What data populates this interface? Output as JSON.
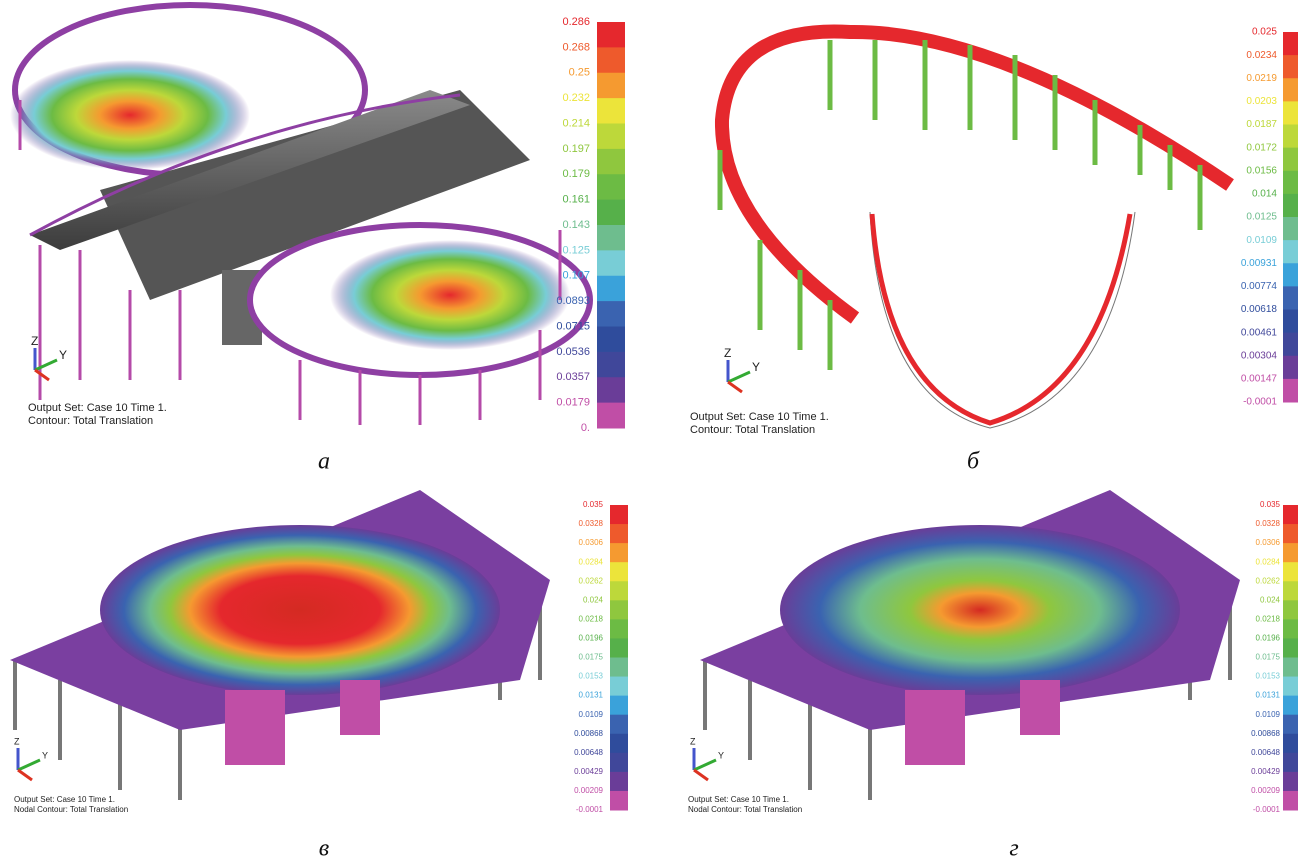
{
  "palette": [
    "#e5282d",
    "#ee5a2c",
    "#f59a30",
    "#ece43a",
    "#bdd83a",
    "#8fc73e",
    "#6cbb44",
    "#56b04a",
    "#6ebd8e",
    "#78cdd6",
    "#3aa2da",
    "#3a63b0",
    "#2f4c9c",
    "#40479a",
    "#6a3d98",
    "#c04ea6"
  ],
  "panels": [
    {
      "caption": "а",
      "axes": [
        "Z",
        "Y"
      ],
      "output_set": "Output Set: Case 10 Time 1.",
      "contour": "Contour: Total Translation",
      "legend": [
        "0.286",
        "0.268",
        "0.25",
        "0.232",
        "0.214",
        "0.197",
        "0.179",
        "0.161",
        "0.143",
        "0.125",
        "0.107",
        "0.0893",
        "0.0715",
        "0.0536",
        "0.0357",
        "0.0179",
        "0."
      ]
    },
    {
      "caption": "б",
      "axes": [
        "Z",
        "Y"
      ],
      "output_set": "Output Set: Case 10 Time 1.",
      "contour": "Contour: Total Translation",
      "legend": [
        "0.025",
        "0.0234",
        "0.0219",
        "0.0203",
        "0.0187",
        "0.0172",
        "0.0156",
        "0.014",
        "0.0125",
        "0.0109",
        "0.00931",
        "0.00774",
        "0.00618",
        "0.00461",
        "0.00304",
        "0.00147",
        "-0.0001"
      ]
    },
    {
      "caption": "в",
      "axes": [
        "Z",
        "Y"
      ],
      "output_set": "Output Set: Case 10 Time 1.",
      "contour": "Nodal Contour: Total Translation",
      "legend": [
        "0.035",
        "0.0328",
        "0.0306",
        "0.0284",
        "0.0262",
        "0.024",
        "0.0218",
        "0.0196",
        "0.0175",
        "0.0153",
        "0.0131",
        "0.0109",
        "0.00868",
        "0.00648",
        "0.00429",
        "0.00209",
        "-0.0001"
      ]
    },
    {
      "caption": "г",
      "axes": [
        "Z",
        "Y"
      ],
      "output_set": "Output Set: Case 10 Time 1.",
      "contour": "Nodal Contour: Total Translation",
      "legend": [
        "0.035",
        "0.0328",
        "0.0306",
        "0.0284",
        "0.0262",
        "0.024",
        "0.0218",
        "0.0196",
        "0.0175",
        "0.0153",
        "0.0131",
        "0.0109",
        "0.00868",
        "0.00648",
        "0.00429",
        "0.00209",
        "-0.0001"
      ]
    }
  ]
}
